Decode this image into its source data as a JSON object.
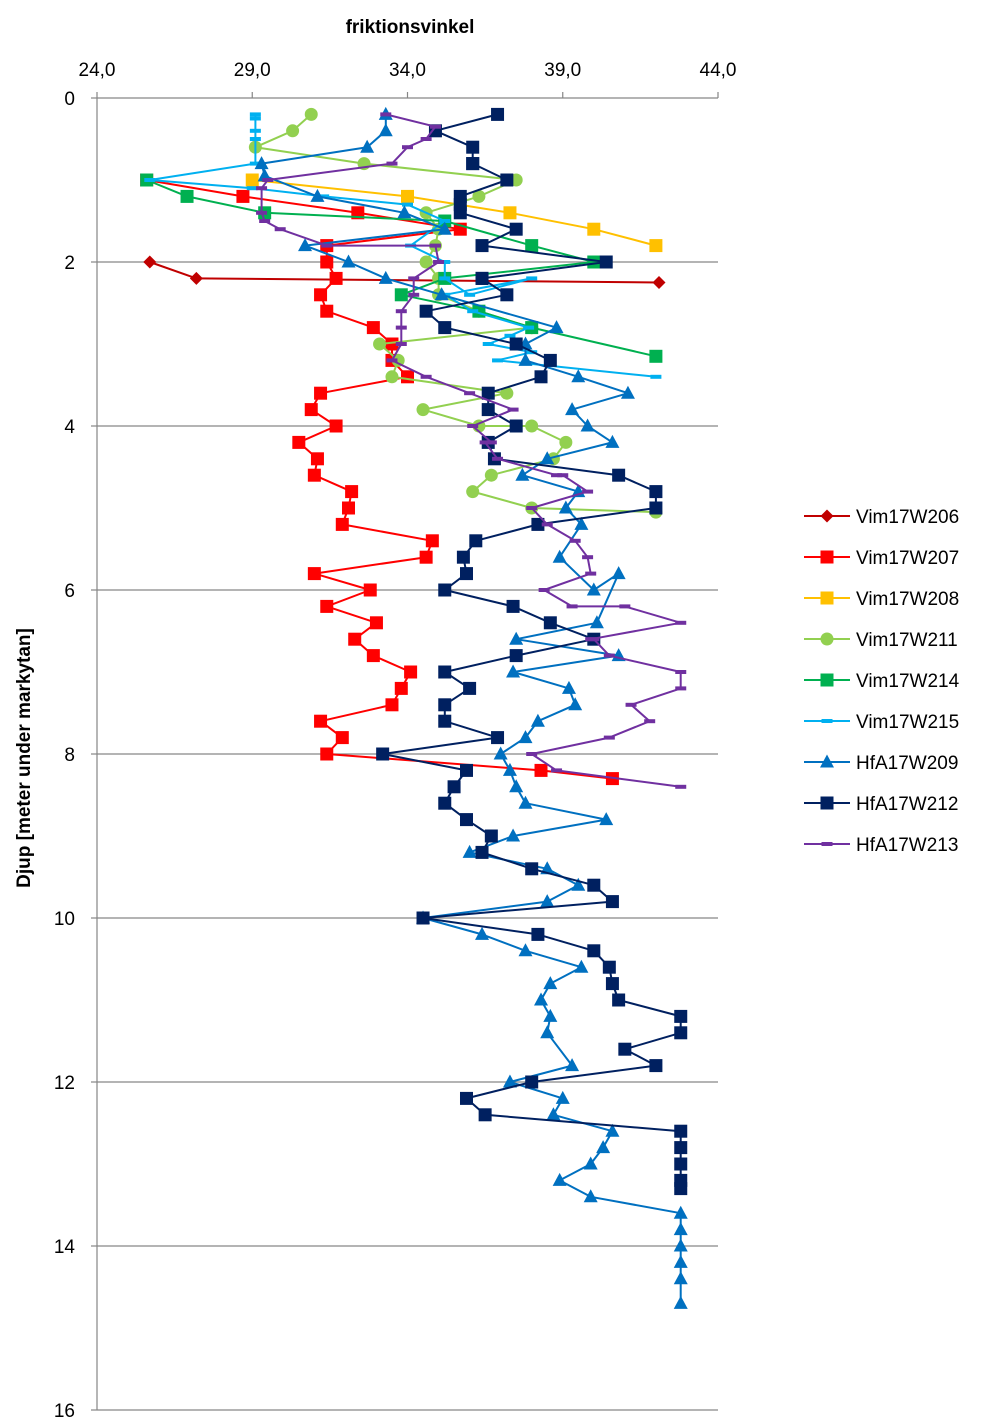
{
  "chart_data": {
    "type": "line",
    "title": "",
    "xlabel": "friktionsvinkel",
    "ylabel": "Djup [meter under markytan]",
    "xlim": [
      24,
      44
    ],
    "ylim": [
      0,
      16
    ],
    "y_inverted": true,
    "x_axis_position": "top",
    "xticks": [
      24,
      29,
      34,
      39,
      44
    ],
    "xtick_labels": [
      "24,0",
      "29,0",
      "34,0",
      "39,0",
      "44,0"
    ],
    "yticks": [
      0,
      2,
      4,
      6,
      8,
      10,
      12,
      14,
      16
    ],
    "ytick_labels": [
      "0",
      "2",
      "4",
      "6",
      "8",
      "10",
      "12",
      "14",
      "16"
    ],
    "grid": "horizontal",
    "legend": "right",
    "series": [
      {
        "name": "Vim17W206",
        "color": "#C00000",
        "marker": "diamond",
        "x": [
          25.7,
          27.2,
          42.1
        ],
        "y": [
          2.0,
          2.2,
          2.25
        ]
      },
      {
        "name": "Vim17W207",
        "color": "#FF0000",
        "marker": "square",
        "x": [
          25.6,
          28.7,
          32.4,
          35.7,
          31.4,
          31.4,
          31.7,
          31.2,
          31.4,
          32.9,
          33.5,
          33.5,
          34.0,
          31.2,
          30.9,
          31.7,
          30.5,
          31.1,
          31.0,
          32.2,
          32.1,
          31.9,
          34.8,
          34.6,
          31.0,
          32.8,
          31.4,
          33.0,
          32.3,
          32.9,
          34.1,
          33.8,
          33.5,
          31.2,
          31.9,
          31.4,
          38.3,
          40.6
        ],
        "y": [
          1.0,
          1.2,
          1.4,
          1.6,
          1.8,
          2.0,
          2.2,
          2.4,
          2.6,
          2.8,
          3.0,
          3.2,
          3.4,
          3.6,
          3.8,
          4.0,
          4.2,
          4.4,
          4.6,
          4.8,
          5.0,
          5.2,
          5.4,
          5.6,
          5.8,
          6.0,
          6.2,
          6.4,
          6.6,
          6.8,
          7.0,
          7.2,
          7.4,
          7.6,
          7.8,
          8.0,
          8.2,
          8.3
        ]
      },
      {
        "name": "Vim17W208",
        "color": "#FFC000",
        "marker": "square",
        "x": [
          29.0,
          34.0,
          37.3,
          40.0,
          42.0
        ],
        "y": [
          1.0,
          1.2,
          1.4,
          1.6,
          1.8
        ]
      },
      {
        "name": "Vim17W211",
        "color": "#92D050",
        "marker": "circle",
        "x": [
          30.9,
          30.3,
          29.1,
          32.6,
          37.5,
          36.3,
          34.6,
          35.0,
          34.9,
          34.6,
          35.0,
          35.0,
          36.3,
          38.0,
          38.0,
          38.0,
          33.1,
          33.7,
          33.5,
          37.2,
          34.5,
          36.3,
          38.0,
          39.1,
          38.7,
          36.7,
          36.1,
          38.0,
          42.0
        ],
        "y": [
          0.2,
          0.4,
          0.6,
          0.8,
          1.0,
          1.2,
          1.4,
          1.6,
          1.8,
          2.0,
          2.2,
          2.4,
          2.6,
          2.8,
          2.8,
          2.8,
          3.0,
          3.2,
          3.4,
          3.6,
          3.8,
          4.0,
          4.0,
          4.2,
          4.4,
          4.6,
          4.8,
          5.0,
          5.05
        ]
      },
      {
        "name": "Vim17W214",
        "color": "#00B050",
        "marker": "square",
        "x": [
          25.6,
          26.9,
          29.4,
          35.2,
          38.0,
          40.0,
          35.2,
          33.8,
          36.3,
          38.0,
          42.0
        ],
        "y": [
          1.0,
          1.2,
          1.4,
          1.5,
          1.8,
          2.0,
          2.2,
          2.4,
          2.6,
          2.8,
          3.15
        ]
      },
      {
        "name": "Vim17W215",
        "color": "#00B0F0",
        "marker": "dash",
        "x": [
          29.1,
          29.1,
          29.1,
          29.1,
          29.1,
          25.7,
          29.0,
          31.3,
          34.0,
          35.2,
          34.1,
          35.2,
          35.2,
          36.0,
          38.0,
          35.2,
          36.1,
          37.9,
          37.3,
          36.6,
          38.0,
          36.9,
          42.0
        ],
        "y": [
          0.2,
          0.25,
          0.4,
          0.5,
          0.8,
          1.0,
          1.1,
          1.2,
          1.3,
          1.5,
          1.8,
          2.0,
          2.2,
          2.4,
          2.2,
          2.4,
          2.6,
          2.8,
          2.9,
          3.0,
          3.1,
          3.2,
          3.4
        ]
      },
      {
        "name": "HfA17W209",
        "color": "#0070C0",
        "marker": "triangle",
        "x": [
          33.3,
          33.3,
          32.7,
          29.3,
          29.4,
          31.1,
          33.9,
          35.2,
          30.7,
          32.1,
          33.3,
          35.1,
          38.8,
          37.8,
          37.8,
          39.5,
          41.1,
          39.3,
          39.8,
          40.6,
          38.5,
          37.7,
          39.5,
          39.1,
          39.6,
          38.9,
          40.0,
          40.8,
          40.1,
          37.5,
          40.8,
          37.4,
          39.2,
          39.4,
          38.2,
          37.8,
          37.0,
          37.3,
          37.5,
          37.8,
          40.4,
          37.4,
          36.0,
          38.5,
          39.5,
          38.5,
          34.5,
          36.4,
          37.8,
          39.6,
          38.6,
          38.3,
          38.6,
          38.5,
          39.3,
          37.3,
          39.0,
          38.7,
          40.6,
          40.3,
          39.9,
          38.9,
          39.9,
          42.8,
          42.8,
          42.8,
          42.8,
          42.8,
          42.8
        ],
        "y": [
          0.2,
          0.4,
          0.6,
          0.8,
          0.95,
          1.2,
          1.4,
          1.6,
          1.8,
          2.0,
          2.2,
          2.4,
          2.8,
          3.0,
          3.2,
          3.4,
          3.6,
          3.8,
          4.0,
          4.2,
          4.4,
          4.6,
          4.8,
          5.0,
          5.2,
          5.6,
          6.0,
          5.8,
          6.4,
          6.6,
          6.8,
          7.0,
          7.2,
          7.4,
          7.6,
          7.8,
          8.0,
          8.2,
          8.4,
          8.6,
          8.8,
          9.0,
          9.2,
          9.4,
          9.6,
          9.8,
          10.0,
          10.2,
          10.4,
          10.6,
          10.8,
          11.0,
          11.2,
          11.4,
          11.8,
          12.0,
          12.2,
          12.4,
          12.6,
          12.8,
          13.0,
          13.2,
          13.4,
          13.6,
          13.8,
          14.0,
          14.2,
          14.4,
          14.7
        ]
      },
      {
        "name": "HfA17W212",
        "color": "#002060",
        "marker": "square",
        "x": [
          36.9,
          34.9,
          36.1,
          36.1,
          36.1,
          37.2,
          35.7,
          35.7,
          35.7,
          37.5,
          36.4,
          40.4,
          36.4,
          36.4,
          37.2,
          34.6,
          35.2,
          37.5,
          38.6,
          38.3,
          36.6,
          36.6,
          37.5,
          36.6,
          36.8,
          40.8,
          42.0,
          42.0,
          38.2,
          36.2,
          35.8,
          35.9,
          35.2,
          37.4,
          38.6,
          40.0,
          37.5,
          35.2,
          36.0,
          35.2,
          35.2,
          36.9,
          33.2,
          35.9,
          35.5,
          35.2,
          35.9,
          36.7,
          36.4,
          38.0,
          40.0,
          40.6,
          34.5,
          38.2,
          40.0,
          40.5,
          40.6,
          40.8,
          42.8,
          42.8,
          41.0,
          42.0,
          38.0,
          35.9,
          36.5,
          42.8,
          42.8,
          42.8,
          42.8,
          42.8
        ],
        "y": [
          0.2,
          0.4,
          0.6,
          0.8,
          0.8,
          1.0,
          1.2,
          1.3,
          1.4,
          1.6,
          1.8,
          2.0,
          2.2,
          2.2,
          2.4,
          2.6,
          2.8,
          3.0,
          3.2,
          3.4,
          3.6,
          3.8,
          4.0,
          4.2,
          4.4,
          4.6,
          4.8,
          5.0,
          5.2,
          5.4,
          5.6,
          5.8,
          6.0,
          6.2,
          6.4,
          6.6,
          6.8,
          7.0,
          7.2,
          7.4,
          7.6,
          7.8,
          8.0,
          8.2,
          8.4,
          8.6,
          8.8,
          9.0,
          9.2,
          9.4,
          9.6,
          9.8,
          10.0,
          10.2,
          10.4,
          10.6,
          10.8,
          11.0,
          11.2,
          11.4,
          11.6,
          11.8,
          12.0,
          12.2,
          12.4,
          12.6,
          12.8,
          13.0,
          13.2,
          13.3
        ]
      },
      {
        "name": "HfA17W213",
        "color": "#7030A0",
        "marker": "dash",
        "x": [
          33.3,
          34.9,
          34.6,
          34.0,
          33.5,
          29.5,
          29.3,
          29.3,
          29.4,
          29.9,
          31.4,
          34.9,
          35.0,
          34.2,
          34.2,
          33.8,
          33.8,
          33.8,
          33.5,
          34.6,
          36.0,
          37.4,
          36.1,
          36.7,
          36.5,
          36.9,
          38.8,
          39.0,
          39.8,
          38.0,
          38.5,
          39.4,
          39.8,
          39.9,
          38.4,
          39.3,
          41.0,
          42.8,
          39.9,
          40.0,
          40.5,
          42.8,
          42.8,
          41.2,
          41.8,
          40.5,
          38.0,
          38.8,
          42.8
        ],
        "y": [
          0.2,
          0.35,
          0.5,
          0.6,
          0.8,
          1.0,
          1.1,
          1.4,
          1.5,
          1.6,
          1.8,
          1.8,
          2.0,
          2.2,
          2.4,
          2.6,
          2.8,
          3.0,
          3.2,
          3.4,
          3.6,
          3.8,
          4.0,
          4.2,
          4.2,
          4.4,
          4.6,
          4.6,
          4.8,
          5.0,
          5.2,
          5.4,
          5.6,
          5.8,
          6.0,
          6.2,
          6.2,
          6.4,
          6.6,
          6.6,
          6.8,
          7.0,
          7.2,
          7.4,
          7.6,
          7.8,
          8.0,
          8.2,
          8.4
        ]
      }
    ]
  }
}
